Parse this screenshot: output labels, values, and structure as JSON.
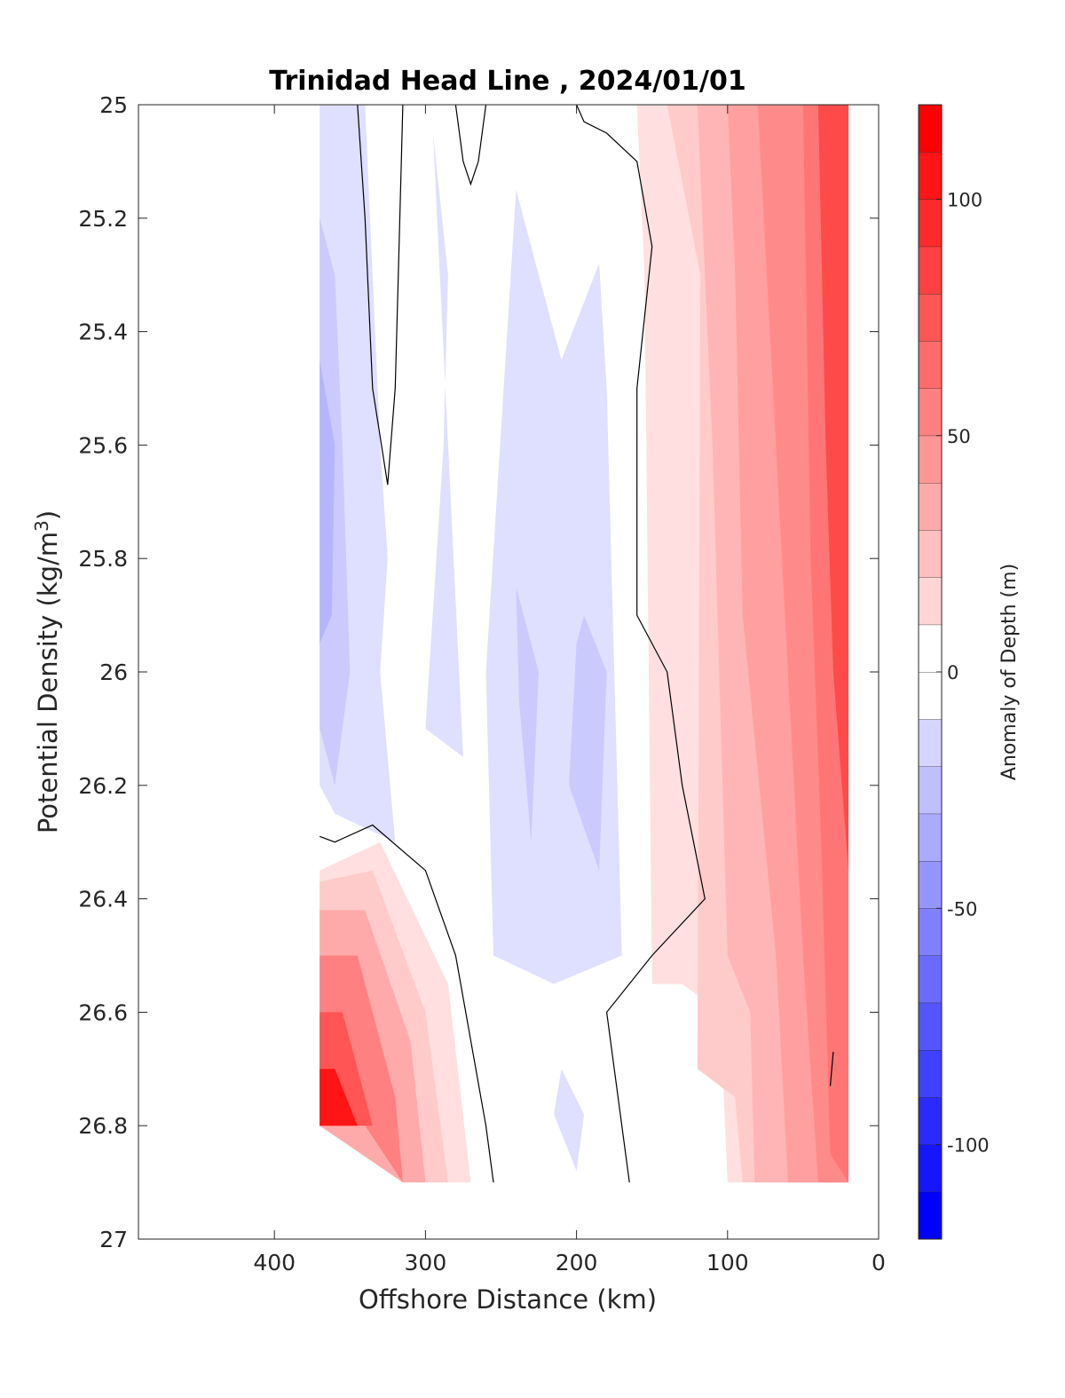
{
  "chart_data": {
    "type": "heatmap",
    "subtype": "filled-contour",
    "title": "Trinidad Head Line , 2024/01/01",
    "xlabel": "Offshore Distance (km)",
    "ylabel": "Potential Density (kg/m3)",
    "xlim": [
      490,
      0
    ],
    "x_direction": "reversed",
    "ylim": [
      25,
      27
    ],
    "y_direction": "reversed",
    "x_ticks": [
      400,
      300,
      200,
      100,
      0
    ],
    "x_tick_labels": [
      "400",
      "300",
      "200",
      "100",
      "0"
    ],
    "y_ticks": [
      25,
      25.2,
      25.4,
      25.6,
      25.8,
      26,
      26.2,
      26.4,
      26.6,
      26.8,
      27
    ],
    "y_tick_labels": [
      "25",
      "25.2",
      "25.4",
      "25.6",
      "25.8",
      "26",
      "26.2",
      "26.4",
      "26.6",
      "26.8",
      "27"
    ],
    "colorbar": {
      "label": "Anomaly of Depth (m)",
      "limits": [
        -120,
        120
      ],
      "ticks": [
        100,
        50,
        0,
        -50,
        -100
      ],
      "tick_labels": [
        "100",
        "50",
        "0",
        "-50",
        "-100"
      ],
      "level_step": 10,
      "colormap": "blue-white-red",
      "max_color": "#ff0000",
      "min_color": "#0000ff",
      "zero_color": "#ffffff"
    },
    "contours": [
      {
        "band": "-20 to -10",
        "points": [
          [
            370,
            25
          ],
          [
            340,
            25
          ],
          [
            335,
            25.3
          ],
          [
            330,
            25.6
          ],
          [
            325,
            25.8
          ],
          [
            330,
            26
          ],
          [
            320,
            26.3
          ],
          [
            360,
            26.25
          ],
          [
            370,
            26.2
          ]
        ]
      },
      {
        "band": "-30 to -20",
        "points": [
          [
            370,
            25.2
          ],
          [
            360,
            25.3
          ],
          [
            355,
            25.6
          ],
          [
            350,
            26
          ],
          [
            360,
            26.2
          ],
          [
            370,
            26.1
          ]
        ]
      },
      {
        "band": "-40 to -30",
        "points": [
          [
            370,
            25.45
          ],
          [
            360,
            25.6
          ],
          [
            362,
            25.9
          ],
          [
            370,
            25.95
          ]
        ]
      },
      {
        "band": "-20 to -10",
        "points": [
          [
            295,
            25.05
          ],
          [
            285,
            25.3
          ],
          [
            288,
            25.6
          ],
          [
            300,
            26.1
          ],
          [
            275,
            26.15
          ],
          [
            285,
            25.6
          ]
        ]
      },
      {
        "band": "-20 to -10",
        "points": [
          [
            240,
            25.15
          ],
          [
            210,
            25.45
          ],
          [
            185,
            25.28
          ],
          [
            180,
            25.5
          ],
          [
            170,
            26.5
          ],
          [
            215,
            26.55
          ],
          [
            255,
            26.5
          ],
          [
            260,
            26
          ]
        ]
      },
      {
        "band": "-30 to -20",
        "points": [
          [
            240,
            25.85
          ],
          [
            225,
            26
          ],
          [
            230,
            26.3
          ],
          [
            238,
            26.05
          ]
        ]
      },
      {
        "band": "-30 to -20",
        "points": [
          [
            195,
            25.9
          ],
          [
            180,
            26
          ],
          [
            185,
            26.35
          ],
          [
            205,
            26.2
          ],
          [
            200,
            25.95
          ]
        ]
      },
      {
        "band": "-20 to -10",
        "points": [
          [
            210,
            26.7
          ],
          [
            215,
            26.78
          ],
          [
            200,
            26.88
          ],
          [
            195,
            26.78
          ]
        ]
      },
      {
        "band": "10 to 120",
        "description": "nearshore positive anomaly",
        "points": [
          [
            160,
            25
          ],
          [
            20,
            25
          ],
          [
            20,
            26.9
          ],
          [
            100,
            26.9
          ],
          [
            105,
            26.6
          ],
          [
            130,
            26.55
          ],
          [
            150,
            26.55
          ],
          [
            155,
            25.3
          ]
        ]
      },
      {
        "band": "10 to 120",
        "description": "deep offshore positive anomaly",
        "points": [
          [
            370,
            26.35
          ],
          [
            330,
            26.3
          ],
          [
            285,
            26.55
          ],
          [
            270,
            26.9
          ],
          [
            310,
            26.9
          ],
          [
            370,
            26.8
          ]
        ]
      }
    ],
    "zero_contour_lines": [
      {
        "points": [
          [
            345,
            25
          ],
          [
            340,
            25.2
          ],
          [
            335,
            25.5
          ],
          [
            325,
            25.67
          ],
          [
            320,
            25.5
          ],
          [
            318,
            25.3
          ],
          [
            315,
            25
          ]
        ]
      },
      {
        "points": [
          [
            280,
            25
          ],
          [
            275,
            25.1
          ],
          [
            270,
            25.14
          ],
          [
            265,
            25.1
          ],
          [
            260,
            25
          ]
        ]
      },
      {
        "points": [
          [
            200,
            25
          ],
          [
            195,
            25.03
          ],
          [
            180,
            25.05
          ],
          [
            160,
            25.1
          ],
          [
            150,
            25.25
          ],
          [
            160,
            25.5
          ],
          [
            160,
            25.9
          ],
          [
            140,
            26
          ],
          [
            130,
            26.2
          ],
          [
            115,
            26.4
          ],
          [
            150,
            26.5
          ],
          [
            180,
            26.6
          ],
          [
            165,
            26.9
          ]
        ]
      },
      {
        "points": [
          [
            370,
            26.29
          ],
          [
            360,
            26.3
          ],
          [
            335,
            26.27
          ],
          [
            300,
            26.35
          ],
          [
            280,
            26.5
          ],
          [
            260,
            26.8
          ],
          [
            255,
            26.9
          ]
        ]
      },
      {
        "points": [
          [
            30,
            26.67
          ],
          [
            32,
            26.73
          ]
        ]
      }
    ]
  }
}
